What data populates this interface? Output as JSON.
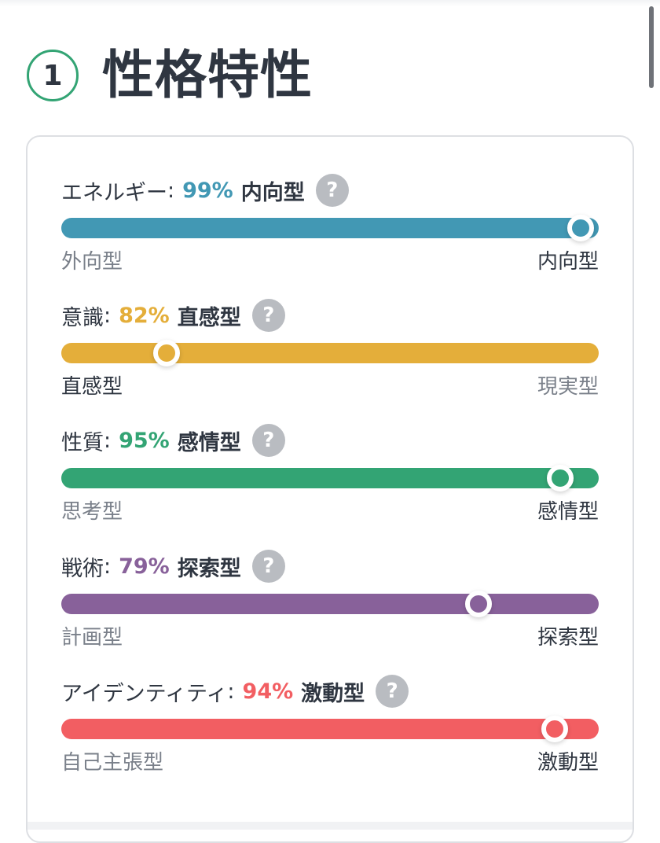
{
  "section": {
    "number": "1",
    "title": "性格特性"
  },
  "traits": [
    {
      "name": "エネルギー",
      "percent": "99%",
      "type": "内向型",
      "left_label": "外向型",
      "right_label": "内向型",
      "active": "right",
      "position": 99,
      "color": "#4298b4"
    },
    {
      "name": "意識",
      "percent": "82%",
      "type": "直感型",
      "left_label": "直感型",
      "right_label": "現実型",
      "active": "left",
      "position": 18,
      "color": "#e4ae3a"
    },
    {
      "name": "性質",
      "percent": "95%",
      "type": "感情型",
      "left_label": "思考型",
      "right_label": "感情型",
      "active": "right",
      "position": 95,
      "color": "#33a474"
    },
    {
      "name": "戦術",
      "percent": "79%",
      "type": "探索型",
      "left_label": "計画型",
      "right_label": "探索型",
      "active": "right",
      "position": 79,
      "color": "#88619a"
    },
    {
      "name": "アイデンティティ",
      "percent": "94%",
      "type": "激動型",
      "left_label": "自己主張型",
      "right_label": "激動型",
      "active": "right",
      "position": 94,
      "color": "#f25e62"
    }
  ],
  "help_icon": "question-mark-icon"
}
